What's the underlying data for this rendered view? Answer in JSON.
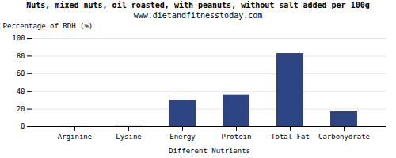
{
  "chart_data": {
    "type": "bar",
    "title": "Nuts, mixed nuts, oil roasted, with peanuts, without salt added per 100g",
    "subtitle": "www.dietandfitnesstoday.com",
    "xlabel": "Different Nutrients",
    "ylabel": "Percentage of RDH (%)",
    "categories": [
      "Arginine",
      "Lysine",
      "Energy",
      "Protein",
      "Total Fat",
      "Carbohydrate"
    ],
    "values": [
      0.5,
      1.0,
      30,
      36,
      83,
      17
    ],
    "color": "#2e4482",
    "ylim": [
      0,
      100
    ],
    "yticks": [
      0,
      20,
      40,
      60,
      80,
      100
    ],
    "grid": true
  }
}
